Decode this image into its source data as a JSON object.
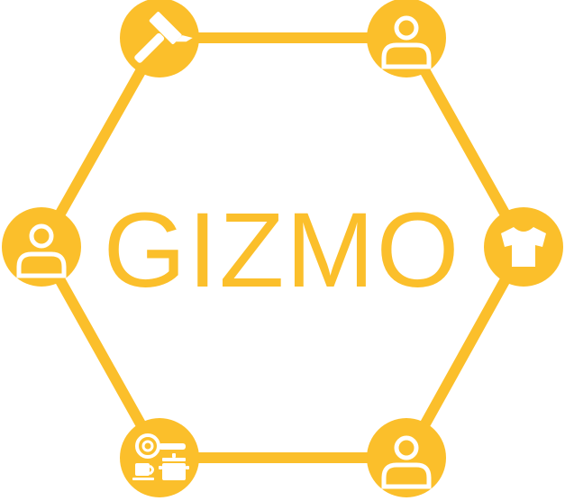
{
  "logo": {
    "title": "GIZMO",
    "accent_color": "#FBBF2B",
    "icon_color": "#ffffff"
  },
  "nodes": [
    {
      "id": "top-left",
      "icon": "hammer-icon"
    },
    {
      "id": "top-right",
      "icon": "person-icon"
    },
    {
      "id": "right",
      "icon": "tshirt-icon"
    },
    {
      "id": "bottom-right",
      "icon": "person-icon"
    },
    {
      "id": "bottom-left",
      "icon": "kitchenware-icon"
    },
    {
      "id": "left",
      "icon": "person-icon"
    }
  ]
}
